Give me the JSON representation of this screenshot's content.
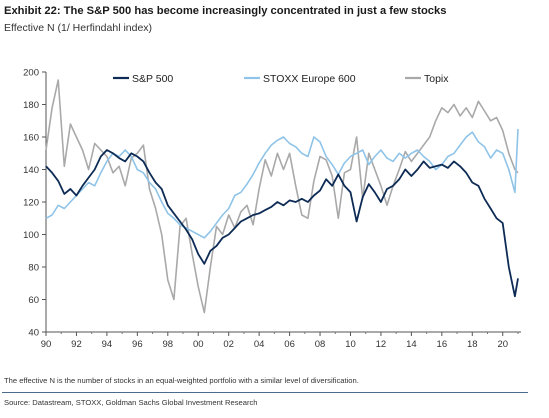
{
  "header": {
    "title": "Exhibit 22: The S&P 500 has become increasingly concentrated in just a few stocks",
    "subtitle": "Effective N (1/ Herfindahl index)"
  },
  "footer": {
    "note": "The effective N is the number of stocks in an equal-weighted portfolio with a similar level of diversification.",
    "source": "Source: Datastream, STOXX, Goldman Sachs Global Investment Research"
  },
  "chart_data": {
    "type": "line",
    "title": "",
    "xlabel": "",
    "ylabel": "",
    "xlim": [
      1990,
      2021.2
    ],
    "ylim": [
      40,
      200
    ],
    "x_ticks": [
      1990,
      1992,
      1994,
      1996,
      1998,
      2000,
      2002,
      2004,
      2006,
      2008,
      2010,
      2012,
      2014,
      2016,
      2018,
      2020
    ],
    "x_tick_labels": [
      "90",
      "92",
      "94",
      "96",
      "98",
      "00",
      "02",
      "04",
      "06",
      "08",
      "10",
      "12",
      "14",
      "16",
      "18",
      "20"
    ],
    "y_ticks": [
      40,
      60,
      80,
      100,
      120,
      140,
      160,
      180,
      200
    ],
    "grid": false,
    "legend_position": "top",
    "series": [
      {
        "name": "S&P 500",
        "color": "#0d2b55",
        "x": [
          1990.0,
          1990.4,
          1990.8,
          1991.2,
          1991.6,
          1992.0,
          1992.4,
          1992.8,
          1993.2,
          1993.6,
          1994.0,
          1994.4,
          1994.8,
          1995.2,
          1995.6,
          1996.0,
          1996.4,
          1996.8,
          1997.2,
          1997.6,
          1998.0,
          1998.4,
          1998.8,
          1999.2,
          1999.6,
          2000.0,
          2000.4,
          2000.8,
          2001.2,
          2001.6,
          2002.0,
          2002.4,
          2002.8,
          2003.2,
          2003.6,
          2004.0,
          2004.4,
          2004.8,
          2005.2,
          2005.6,
          2006.0,
          2006.4,
          2006.8,
          2007.2,
          2007.6,
          2008.0,
          2008.4,
          2008.8,
          2009.2,
          2009.6,
          2010.0,
          2010.4,
          2010.8,
          2011.2,
          2011.6,
          2012.0,
          2012.4,
          2012.8,
          2013.2,
          2013.6,
          2014.0,
          2014.4,
          2014.8,
          2015.2,
          2015.6,
          2016.0,
          2016.4,
          2016.8,
          2017.2,
          2017.6,
          2018.0,
          2018.4,
          2018.8,
          2019.2,
          2019.6,
          2020.0,
          2020.4,
          2020.8,
          2021.0
        ],
        "values": [
          142,
          138,
          133,
          125,
          128,
          124,
          130,
          135,
          140,
          148,
          152,
          150,
          147,
          145,
          150,
          148,
          145,
          138,
          132,
          128,
          118,
          113,
          108,
          103,
          97,
          88,
          82,
          90,
          93,
          98,
          100,
          104,
          108,
          110,
          112,
          113,
          115,
          117,
          120,
          118,
          121,
          120,
          122,
          120,
          124,
          127,
          134,
          130,
          137,
          130,
          126,
          108,
          123,
          131,
          126,
          120,
          128,
          130,
          134,
          140,
          136,
          140,
          145,
          141,
          142,
          143,
          141,
          145,
          142,
          138,
          132,
          130,
          122,
          116,
          110,
          107,
          80,
          62,
          73
        ]
      },
      {
        "name": "STOXX Europe 600",
        "color": "#8fc4e8",
        "x": [
          1990.0,
          1990.4,
          1990.8,
          1991.2,
          1991.6,
          1992.0,
          1992.4,
          1992.8,
          1993.2,
          1993.6,
          1994.0,
          1994.4,
          1994.8,
          1995.2,
          1995.6,
          1996.0,
          1996.4,
          1996.8,
          1997.2,
          1997.6,
          1998.0,
          1998.4,
          1998.8,
          1999.2,
          1999.6,
          2000.0,
          2000.4,
          2000.8,
          2001.2,
          2001.6,
          2002.0,
          2002.4,
          2002.8,
          2003.2,
          2003.6,
          2004.0,
          2004.4,
          2004.8,
          2005.2,
          2005.6,
          2006.0,
          2006.4,
          2006.8,
          2007.2,
          2007.6,
          2008.0,
          2008.4,
          2008.8,
          2009.2,
          2009.6,
          2010.0,
          2010.4,
          2010.8,
          2011.2,
          2011.6,
          2012.0,
          2012.4,
          2012.8,
          2013.2,
          2013.6,
          2014.0,
          2014.4,
          2014.8,
          2015.2,
          2015.6,
          2016.0,
          2016.4,
          2016.8,
          2017.2,
          2017.6,
          2018.0,
          2018.4,
          2018.8,
          2019.2,
          2019.6,
          2020.0,
          2020.4,
          2020.8,
          2021.0
        ],
        "values": [
          110,
          112,
          118,
          116,
          120,
          124,
          128,
          132,
          130,
          138,
          145,
          150,
          148,
          152,
          148,
          140,
          138,
          132,
          128,
          120,
          113,
          110,
          106,
          104,
          102,
          100,
          98,
          102,
          107,
          112,
          116,
          124,
          126,
          131,
          137,
          144,
          150,
          155,
          158,
          160,
          156,
          154,
          150,
          148,
          160,
          157,
          148,
          143,
          137,
          144,
          148,
          150,
          152,
          143,
          148,
          152,
          147,
          145,
          150,
          147,
          150,
          152,
          148,
          145,
          140,
          143,
          148,
          150,
          155,
          160,
          163,
          157,
          154,
          147,
          152,
          150,
          140,
          126,
          165
        ]
      },
      {
        "name": "Topix",
        "color": "#a9a9a9",
        "x": [
          1990.0,
          1990.4,
          1990.8,
          1991.2,
          1991.6,
          1992.0,
          1992.4,
          1992.8,
          1993.2,
          1993.6,
          1994.0,
          1994.4,
          1994.8,
          1995.2,
          1995.6,
          1996.0,
          1996.4,
          1996.8,
          1997.2,
          1997.6,
          1998.0,
          1998.4,
          1998.8,
          1999.2,
          1999.6,
          2000.0,
          2000.4,
          2000.8,
          2001.2,
          2001.6,
          2002.0,
          2002.4,
          2002.8,
          2003.2,
          2003.6,
          2004.0,
          2004.4,
          2004.8,
          2005.2,
          2005.6,
          2006.0,
          2006.4,
          2006.8,
          2007.2,
          2007.6,
          2008.0,
          2008.4,
          2008.8,
          2009.2,
          2009.6,
          2010.0,
          2010.4,
          2010.8,
          2011.2,
          2011.6,
          2012.0,
          2012.4,
          2012.8,
          2013.2,
          2013.6,
          2014.0,
          2014.4,
          2014.8,
          2015.2,
          2015.6,
          2016.0,
          2016.4,
          2016.8,
          2017.2,
          2017.6,
          2018.0,
          2018.4,
          2018.8,
          2019.2,
          2019.6,
          2020.0,
          2020.4,
          2020.8,
          2021.0
        ],
        "values": [
          152,
          178,
          195,
          142,
          168,
          160,
          152,
          140,
          156,
          152,
          148,
          138,
          142,
          130,
          147,
          150,
          155,
          128,
          116,
          100,
          72,
          60,
          105,
          110,
          88,
          68,
          52,
          80,
          105,
          100,
          112,
          104,
          114,
          118,
          106,
          128,
          146,
          136,
          150,
          140,
          150,
          130,
          112,
          110,
          133,
          148,
          146,
          136,
          110,
          138,
          140,
          160,
          122,
          150,
          140,
          130,
          118,
          130,
          140,
          151,
          145,
          150,
          155,
          160,
          170,
          178,
          175,
          180,
          173,
          178,
          172,
          182,
          176,
          170,
          172,
          164,
          150,
          140,
          138
        ]
      }
    ]
  }
}
